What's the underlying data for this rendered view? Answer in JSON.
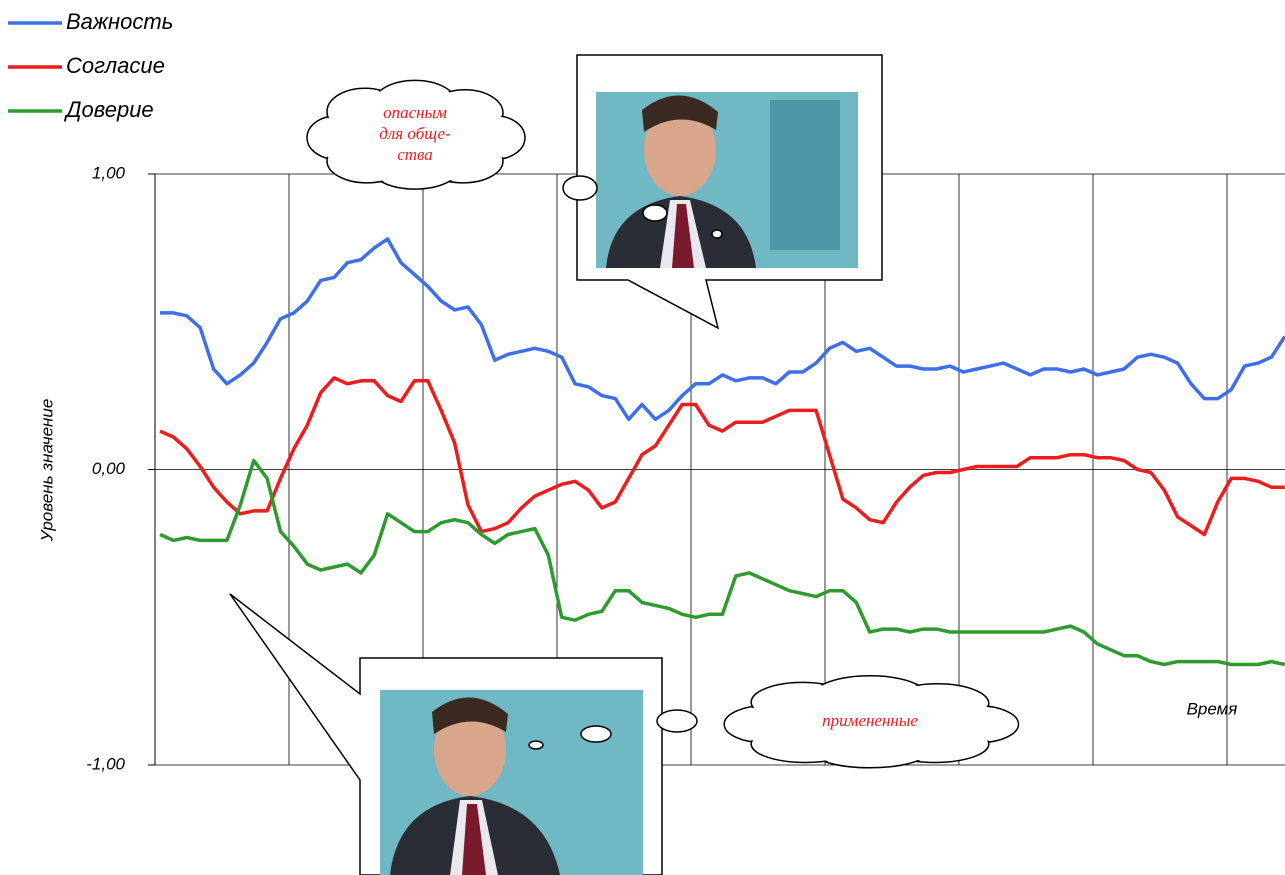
{
  "chart_data": {
    "type": "line",
    "y_label": "Уровень значение",
    "x_label": "Время",
    "ylim": [
      -1,
      1
    ],
    "yticks": [
      {
        "value": 1,
        "label": "1,00"
      },
      {
        "value": 0,
        "label": "0,00"
      },
      {
        "value": -1,
        "label": "-1,00"
      }
    ],
    "grid": true,
    "legend": "top-left",
    "categories": [
      null,
      null,
      null,
      null,
      null,
      null,
      null,
      null,
      null,
      null,
      null,
      null,
      null,
      null,
      null,
      null,
      null,
      null,
      null,
      null,
      null,
      null,
      null,
      null,
      null,
      null,
      null,
      null,
      null,
      null,
      null,
      null,
      null,
      null,
      null,
      null,
      null,
      null,
      null,
      null,
      null,
      null,
      null,
      null,
      null,
      null,
      null,
      null,
      null,
      null,
      null,
      null,
      null,
      null,
      null,
      null,
      null,
      null,
      null,
      null,
      null,
      null,
      null,
      null,
      null,
      null,
      null,
      null,
      null,
      null,
      null,
      null,
      null,
      null,
      null,
      null,
      null,
      null,
      null,
      null,
      null,
      null,
      null,
      null,
      null
    ],
    "series": [
      {
        "name": "Важность",
        "color": "#3f6fe8",
        "values": [
          0.53,
          0.53,
          0.52,
          0.48,
          0.34,
          0.29,
          0.32,
          0.36,
          0.43,
          0.51,
          0.53,
          0.57,
          0.64,
          0.65,
          0.7,
          0.71,
          0.75,
          0.78,
          0.7,
          0.66,
          0.62,
          0.57,
          0.54,
          0.55,
          0.49,
          0.37,
          0.39,
          0.4,
          0.41,
          0.4,
          0.38,
          0.29,
          0.28,
          0.25,
          0.24,
          0.17,
          0.22,
          0.17,
          0.2,
          0.25,
          0.29,
          0.29,
          0.32,
          0.3,
          0.31,
          0.31,
          0.29,
          0.33,
          0.33,
          0.36,
          0.41,
          0.43,
          0.4,
          0.41,
          0.38,
          0.35,
          0.35,
          0.34,
          0.34,
          0.35,
          0.33,
          0.34,
          0.35,
          0.36,
          0.34,
          0.32,
          0.34,
          0.34,
          0.33,
          0.34,
          0.32,
          0.33,
          0.34,
          0.38,
          0.39,
          0.38,
          0.36,
          0.29,
          0.24,
          0.24,
          0.27,
          0.35,
          0.36,
          0.38,
          0.45
        ]
      },
      {
        "name": "Согласие",
        "color": "#ee1c1c",
        "values": [
          0.13,
          0.11,
          0.07,
          0.01,
          -0.06,
          -0.11,
          -0.15,
          -0.14,
          -0.14,
          -0.03,
          0.07,
          0.15,
          0.26,
          0.31,
          0.29,
          0.3,
          0.3,
          0.25,
          0.23,
          0.3,
          0.3,
          0.2,
          0.09,
          -0.12,
          -0.21,
          -0.2,
          -0.18,
          -0.13,
          -0.09,
          -0.07,
          -0.05,
          -0.04,
          -0.07,
          -0.13,
          -0.11,
          -0.03,
          0.05,
          0.08,
          0.15,
          0.22,
          0.22,
          0.15,
          0.13,
          0.16,
          0.16,
          0.16,
          0.18,
          0.2,
          0.2,
          0.2,
          0.05,
          -0.1,
          -0.13,
          -0.17,
          -0.18,
          -0.11,
          -0.06,
          -0.02,
          -0.01,
          -0.01,
          0.0,
          0.01,
          0.01,
          0.01,
          0.01,
          0.04,
          0.04,
          0.04,
          0.05,
          0.05,
          0.04,
          0.04,
          0.03,
          0.0,
          -0.01,
          -0.07,
          -0.16,
          -0.19,
          -0.22,
          -0.11,
          -0.03,
          -0.03,
          -0.04,
          -0.06,
          -0.06
        ]
      },
      {
        "name": "Доверие",
        "color": "#2e9b2e",
        "values": [
          -0.22,
          -0.24,
          -0.23,
          -0.24,
          -0.24,
          -0.24,
          -0.12,
          0.03,
          -0.03,
          -0.21,
          -0.26,
          -0.32,
          -0.34,
          -0.33,
          -0.32,
          -0.35,
          -0.29,
          -0.15,
          -0.18,
          -0.21,
          -0.21,
          -0.18,
          -0.17,
          -0.18,
          -0.22,
          -0.25,
          -0.22,
          -0.21,
          -0.2,
          -0.29,
          -0.5,
          -0.51,
          -0.49,
          -0.48,
          -0.41,
          -0.41,
          -0.45,
          -0.46,
          -0.47,
          -0.49,
          -0.5,
          -0.49,
          -0.49,
          -0.36,
          -0.35,
          -0.37,
          -0.39,
          -0.41,
          -0.42,
          -0.43,
          -0.41,
          -0.41,
          -0.45,
          -0.55,
          -0.54,
          -0.54,
          -0.55,
          -0.54,
          -0.54,
          -0.55,
          -0.55,
          -0.55,
          -0.55,
          -0.55,
          -0.55,
          -0.55,
          -0.55,
          -0.54,
          -0.53,
          -0.55,
          -0.59,
          -0.61,
          -0.63,
          -0.63,
          -0.65,
          -0.66,
          -0.65,
          -0.65,
          -0.65,
          -0.65,
          -0.66,
          -0.66,
          -0.66,
          -0.65,
          -0.66
        ]
      }
    ],
    "annotations": [
      [
        "опасным",
        "для обще-",
        "ства"
      ],
      [
        "примененные"
      ]
    ]
  }
}
